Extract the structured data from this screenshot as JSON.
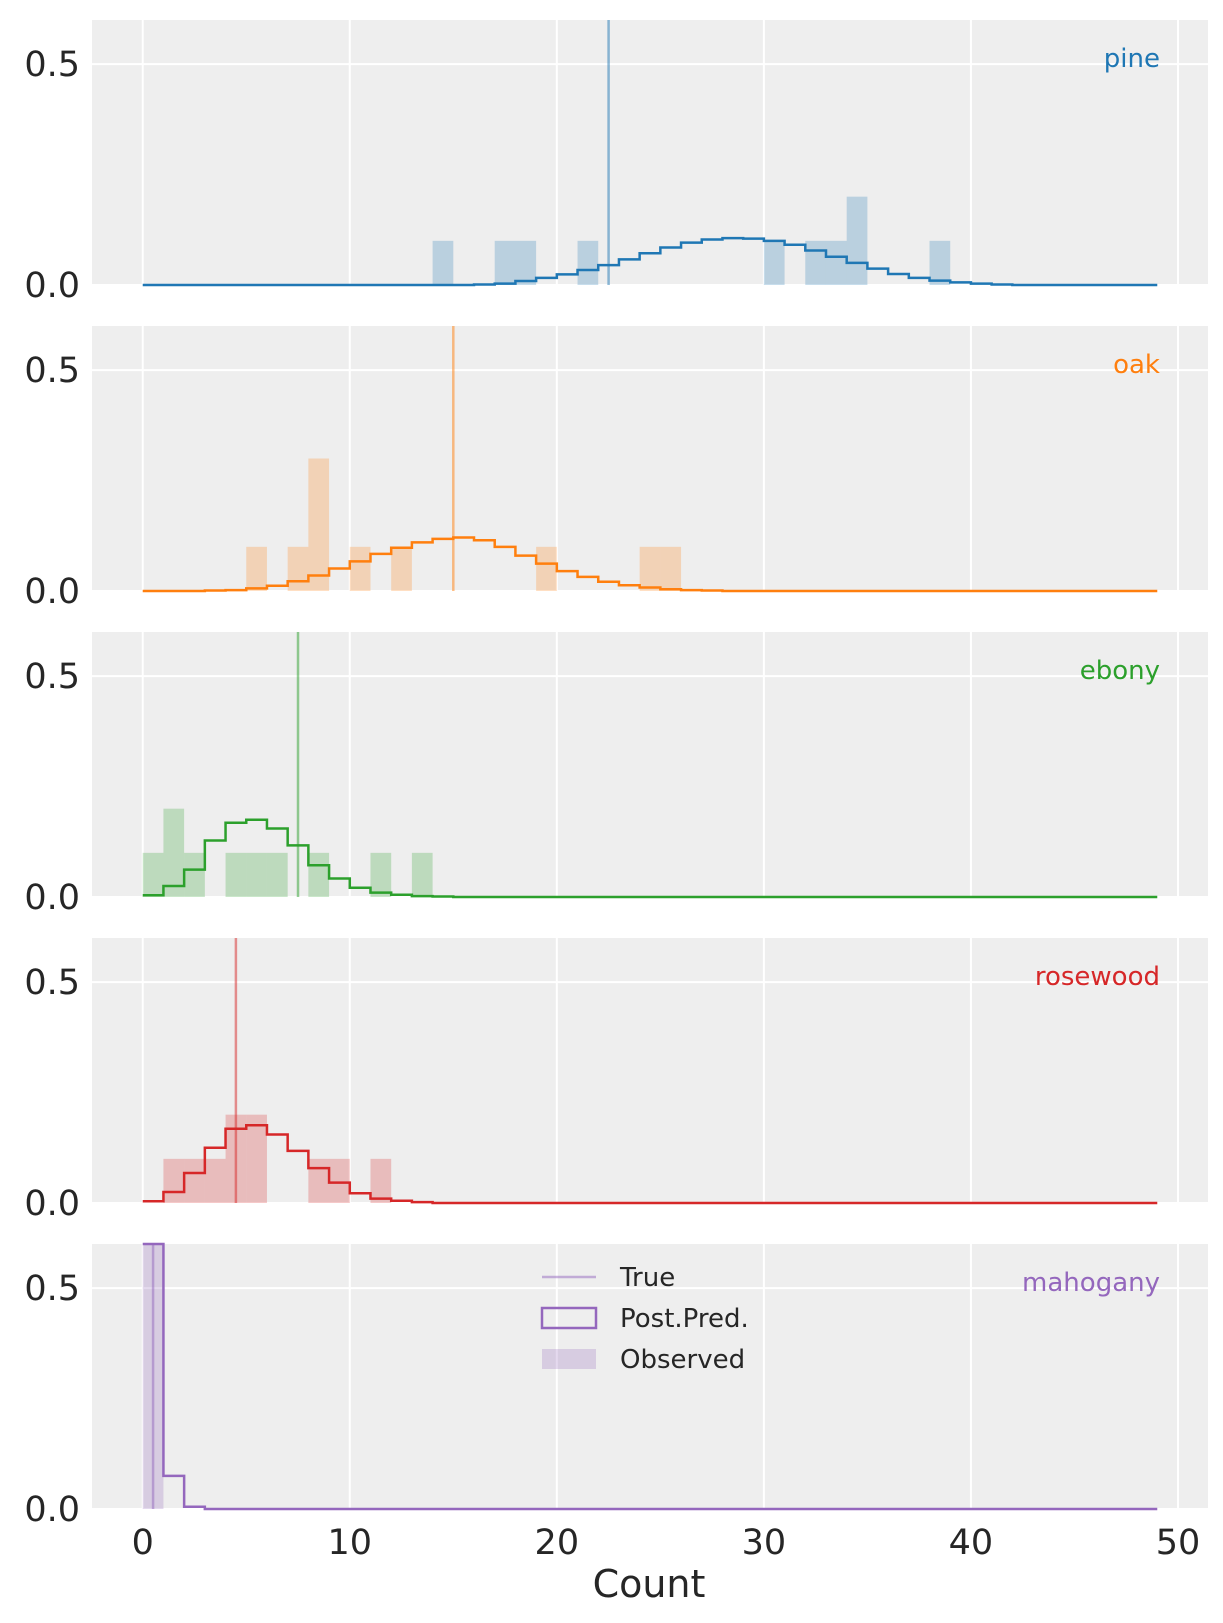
{
  "chart_data": {
    "type": "bar",
    "xlabel": "Count",
    "ylabel": "",
    "xlim": [
      -2.45,
      51.45
    ],
    "ylim": [
      0,
      0.6
    ],
    "x_ticks": [
      0,
      10,
      20,
      30,
      40,
      50
    ],
    "y_ticks": [
      0.0,
      0.5
    ],
    "x_tick_labels": [
      "0",
      "10",
      "20",
      "30",
      "40",
      "50"
    ],
    "y_tick_labels": [
      "0.0",
      "0.5"
    ],
    "grid": true,
    "bin_start": 0,
    "bin_width": 1,
    "legend": {
      "location": "upper center of bottom panel",
      "entries": [
        "True",
        "Post.Pred.",
        "Observed"
      ]
    },
    "panels": [
      {
        "name": "pine",
        "color": "#1f77b4",
        "true_value": 22.5,
        "observed": [
          {
            "x": 14,
            "density": 0.1
          },
          {
            "x": 17,
            "density": 0.1
          },
          {
            "x": 18,
            "density": 0.1
          },
          {
            "x": 21,
            "density": 0.1
          },
          {
            "x": 30,
            "density": 0.1
          },
          {
            "x": 32,
            "density": 0.1
          },
          {
            "x": 33,
            "density": 0.1
          },
          {
            "x": 34,
            "density": 0.2
          },
          {
            "x": 38,
            "density": 0.1
          }
        ],
        "posterior_predictive": [
          0,
          0,
          0,
          0,
          0,
          0,
          0,
          0,
          0,
          0,
          0,
          0,
          0,
          0,
          0,
          0,
          0.001,
          0.003,
          0.009,
          0.016,
          0.024,
          0.034,
          0.045,
          0.058,
          0.072,
          0.085,
          0.096,
          0.103,
          0.106,
          0.105,
          0.1,
          0.091,
          0.078,
          0.064,
          0.05,
          0.037,
          0.025,
          0.016,
          0.01,
          0.006,
          0.003,
          0.001,
          0,
          0,
          0,
          0,
          0,
          0,
          0
        ]
      },
      {
        "name": "oak",
        "color": "#ff7f0e",
        "true_value": 15,
        "observed": [
          {
            "x": 5,
            "density": 0.1
          },
          {
            "x": 7,
            "density": 0.1
          },
          {
            "x": 8,
            "density": 0.3
          },
          {
            "x": 10,
            "density": 0.1
          },
          {
            "x": 12,
            "density": 0.1
          },
          {
            "x": 19,
            "density": 0.1
          },
          {
            "x": 24,
            "density": 0.1
          },
          {
            "x": 25,
            "density": 0.1
          }
        ],
        "posterior_predictive": [
          0,
          0,
          0,
          0.001,
          0.002,
          0.006,
          0.012,
          0.022,
          0.035,
          0.051,
          0.067,
          0.084,
          0.098,
          0.11,
          0.118,
          0.121,
          0.115,
          0.1,
          0.08,
          0.062,
          0.045,
          0.032,
          0.021,
          0.013,
          0.008,
          0.004,
          0.002,
          0.001,
          0,
          0,
          0,
          0,
          0,
          0,
          0,
          0,
          0,
          0,
          0,
          0,
          0,
          0,
          0,
          0,
          0,
          0,
          0,
          0,
          0
        ]
      },
      {
        "name": "ebony",
        "color": "#2ca02c",
        "true_value": 7.5,
        "observed": [
          {
            "x": 0,
            "density": 0.1
          },
          {
            "x": 1,
            "density": 0.2
          },
          {
            "x": 2,
            "density": 0.1
          },
          {
            "x": 4,
            "density": 0.1
          },
          {
            "x": 5,
            "density": 0.1
          },
          {
            "x": 6,
            "density": 0.1
          },
          {
            "x": 8,
            "density": 0.1
          },
          {
            "x": 11,
            "density": 0.1
          },
          {
            "x": 13,
            "density": 0.1
          }
        ],
        "posterior_predictive": [
          0.004,
          0.025,
          0.062,
          0.128,
          0.168,
          0.175,
          0.155,
          0.117,
          0.072,
          0.042,
          0.021,
          0.01,
          0.005,
          0.002,
          0.001,
          0,
          0,
          0,
          0,
          0,
          0,
          0,
          0,
          0,
          0,
          0,
          0,
          0,
          0,
          0,
          0,
          0,
          0,
          0,
          0,
          0,
          0,
          0,
          0,
          0,
          0,
          0,
          0,
          0,
          0,
          0,
          0,
          0,
          0
        ]
      },
      {
        "name": "rosewood",
        "color": "#d62728",
        "true_value": 4.5,
        "observed": [
          {
            "x": 1,
            "density": 0.1
          },
          {
            "x": 2,
            "density": 0.1
          },
          {
            "x": 3,
            "density": 0.1
          },
          {
            "x": 4,
            "density": 0.2
          },
          {
            "x": 5,
            "density": 0.2
          },
          {
            "x": 8,
            "density": 0.1
          },
          {
            "x": 9,
            "density": 0.1
          },
          {
            "x": 11,
            "density": 0.1
          }
        ],
        "posterior_predictive": [
          0.004,
          0.025,
          0.068,
          0.125,
          0.168,
          0.176,
          0.155,
          0.118,
          0.079,
          0.046,
          0.022,
          0.01,
          0.005,
          0.002,
          0,
          0,
          0,
          0,
          0,
          0,
          0,
          0,
          0,
          0,
          0,
          0,
          0,
          0,
          0,
          0,
          0,
          0,
          0,
          0,
          0,
          0,
          0,
          0,
          0,
          0,
          0,
          0,
          0,
          0,
          0,
          0,
          0,
          0,
          0
        ]
      },
      {
        "name": "mahogany",
        "color": "#9467bd",
        "true_value": 0.5,
        "observed": [
          {
            "x": 0,
            "density": 1.0
          }
        ],
        "posterior_predictive": [
          0.85,
          0.075,
          0.005,
          0,
          0,
          0,
          0,
          0,
          0,
          0,
          0,
          0,
          0,
          0,
          0,
          0,
          0,
          0,
          0,
          0,
          0,
          0,
          0,
          0,
          0,
          0,
          0,
          0,
          0,
          0,
          0,
          0,
          0,
          0,
          0,
          0,
          0,
          0,
          0,
          0,
          0,
          0,
          0,
          0,
          0,
          0,
          0,
          0,
          0
        ]
      }
    ]
  }
}
